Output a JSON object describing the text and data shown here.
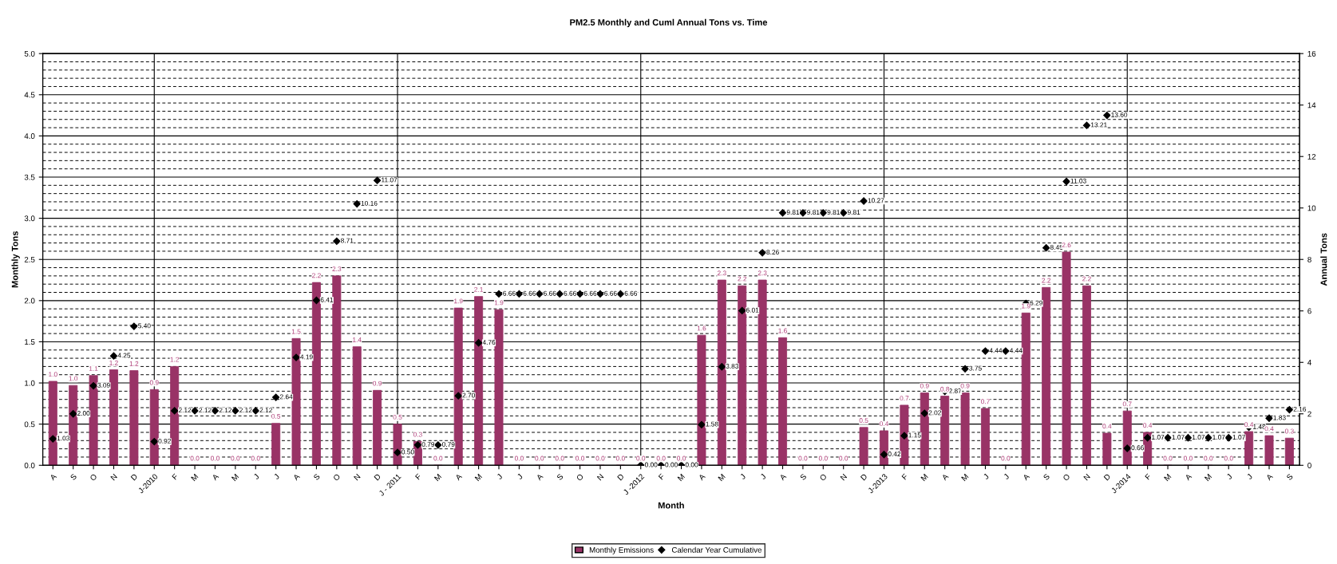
{
  "chart_data": {
    "type": "bar",
    "title": "PM2.5 Monthly and Cuml Annual Tons vs. Time",
    "xlabel": "Month",
    "ylabel": "Monthly Tons",
    "y2label": "Annual Tons",
    "categories": [
      "A",
      "S",
      "O",
      "N",
      "D",
      "J-2010",
      "F",
      "M",
      "A",
      "M",
      "J",
      "J",
      "A",
      "S",
      "O",
      "N",
      "D",
      "J - 2011",
      "F",
      "M",
      "A",
      "M",
      "J",
      "J",
      "A",
      "S",
      "O",
      "N",
      "D",
      "J -2012",
      "F",
      "M",
      "A",
      "M",
      "J",
      "J",
      "A",
      "S",
      "O",
      "N",
      "D",
      "J-2013",
      "F",
      "M",
      "A",
      "M",
      "J",
      "J",
      "A",
      "S",
      "O",
      "N",
      "D",
      "J-2014",
      "F",
      "M",
      "A",
      "M",
      "J",
      "J",
      "A",
      "S"
    ],
    "series": [
      {
        "name": "Monthly Emissions",
        "type": "bar",
        "color": "#993366",
        "values": [
          1.02,
          0.97,
          1.09,
          1.16,
          1.15,
          0.92,
          1.2,
          0,
          0,
          0,
          0,
          0.51,
          1.54,
          2.22,
          2.3,
          1.44,
          0.91,
          0.5,
          0.29,
          0,
          1.91,
          2.05,
          1.89,
          0,
          0,
          0,
          0,
          0,
          0,
          0,
          0,
          0,
          1.58,
          2.25,
          2.18,
          2.25,
          1.55,
          0,
          0,
          0,
          0.46,
          0.42,
          0.73,
          0.88,
          0.84,
          0.88,
          0.69,
          0,
          1.85,
          2.16,
          2.59,
          2.18,
          0.39,
          0.66,
          0.4,
          0,
          0,
          0,
          0,
          0.41,
          0.36,
          0.33
        ],
        "value_labels": [
          "1.0",
          "1.0",
          "1.1",
          "1.2",
          "1.2",
          "0.9",
          "1.2",
          "0.0",
          "0.0",
          "0.0",
          "0.0",
          "0.5",
          "1.5",
          "2.2",
          "2.3",
          "1.4",
          "0.9",
          "0.5",
          "0.3",
          "0.0",
          "1.9",
          "2.1",
          "1.9",
          "0.0",
          "0.0",
          "0.0",
          "0.0",
          "0.0",
          "0.0",
          "0.0",
          "0.0",
          "0.0",
          "1.6",
          "2.3",
          "2.2",
          "2.3",
          "1.6",
          "0.0",
          "0.0",
          "0.0",
          "0.5",
          "0.4",
          "0.7",
          "0.9",
          "0.8",
          "0.9",
          "0.7",
          "0.0",
          "1.9",
          "2.2",
          "2.6",
          "2.2",
          "0.4",
          "0.7",
          "0.4",
          "0.0",
          "0.0",
          "0.0",
          "0.0",
          "0.4",
          "0.4",
          "0.3"
        ]
      },
      {
        "name": "Calendar Year Cumulative",
        "type": "scatter",
        "axis": "y2",
        "color": "#000000",
        "marker": "diamond",
        "values": [
          1.03,
          2.0,
          3.09,
          4.25,
          5.4,
          0.92,
          2.12,
          2.12,
          2.12,
          2.12,
          2.12,
          2.64,
          4.19,
          6.41,
          8.71,
          10.16,
          11.07,
          0.5,
          0.79,
          0.79,
          2.7,
          4.76,
          6.66,
          6.66,
          6.66,
          6.66,
          6.66,
          6.66,
          6.66,
          0.0,
          0.0,
          0.0,
          1.58,
          3.83,
          6.01,
          8.26,
          9.81,
          9.81,
          9.81,
          9.81,
          10.27,
          0.42,
          1.15,
          2.02,
          2.87,
          3.75,
          4.44,
          4.44,
          6.29,
          8.45,
          11.03,
          13.21,
          13.6,
          0.66,
          1.07,
          1.07,
          1.07,
          1.07,
          1.07,
          1.48,
          1.83,
          2.16
        ],
        "value_labels": [
          "1.03",
          "2.00",
          "3.09",
          "4.25",
          "5.40",
          "0.92",
          "2.12",
          "2.12",
          "2.12",
          "2.12",
          "2.12",
          "2.64",
          "4.19",
          "6.41",
          "8.71",
          "10.16",
          "11.07",
          "0.50",
          "0.79",
          "0.79",
          "2.70",
          "4.76",
          "6.66",
          "6.66",
          "6.66",
          "6.66",
          "6.66",
          "6.66",
          "6.66",
          "0.00",
          "0.00",
          "0.00",
          "1.58",
          "3.83",
          "6.01",
          "8.26",
          "9.81",
          "9.81",
          "9.81",
          "9.81",
          "10.27",
          "0.42",
          "1.15",
          "2.02",
          "2.87",
          "3.75",
          "4.44",
          "4.44",
          "6.29",
          "8.45",
          "11.03",
          "13.21",
          "13.60",
          "0.66",
          "1.07",
          "1.07",
          "1.07",
          "1.07",
          "1.07",
          "1.48",
          "1.83",
          "2.16"
        ]
      }
    ],
    "ylim": [
      0,
      5
    ],
    "yticks": [
      {
        "value": 0,
        "label": "0.0"
      },
      {
        "value": 0.1,
        "label": null
      },
      {
        "value": 0.2,
        "label": null
      },
      {
        "value": 0.3,
        "label": null
      },
      {
        "value": 0.4,
        "label": null
      },
      {
        "value": 0.5,
        "label": "0.5"
      },
      {
        "value": 0.6,
        "label": null
      },
      {
        "value": 0.7,
        "label": null
      },
      {
        "value": 0.8,
        "label": null
      },
      {
        "value": 0.9,
        "label": null
      },
      {
        "value": 1.0,
        "label": "1.0"
      },
      {
        "value": 1.1,
        "label": null
      },
      {
        "value": 1.2,
        "label": null
      },
      {
        "value": 1.3,
        "label": null
      },
      {
        "value": 1.4,
        "label": null
      },
      {
        "value": 1.5,
        "label": "1.5"
      },
      {
        "value": 1.6,
        "label": null
      },
      {
        "value": 1.7,
        "label": null
      },
      {
        "value": 1.8,
        "label": null
      },
      {
        "value": 1.9,
        "label": null
      },
      {
        "value": 2.0,
        "label": "2.0"
      },
      {
        "value": 2.1,
        "label": null
      },
      {
        "value": 2.2,
        "label": null
      },
      {
        "value": 2.3,
        "label": null
      },
      {
        "value": 2.4,
        "label": null
      },
      {
        "value": 2.5,
        "label": "2.5"
      },
      {
        "value": 2.6,
        "label": null
      },
      {
        "value": 2.7,
        "label": null
      },
      {
        "value": 2.8,
        "label": null
      },
      {
        "value": 2.9,
        "label": null
      },
      {
        "value": 3.0,
        "label": "3.0"
      },
      {
        "value": 3.1,
        "label": null
      },
      {
        "value": 3.2,
        "label": null
      },
      {
        "value": 3.3,
        "label": null
      },
      {
        "value": 3.4,
        "label": null
      },
      {
        "value": 3.5,
        "label": "3.5"
      },
      {
        "value": 3.6,
        "label": null
      },
      {
        "value": 3.7,
        "label": null
      },
      {
        "value": 3.8,
        "label": null
      },
      {
        "value": 3.9,
        "label": null
      },
      {
        "value": 4.0,
        "label": "4.0"
      },
      {
        "value": 4.1,
        "label": null
      },
      {
        "value": 4.2,
        "label": null
      },
      {
        "value": 4.3,
        "label": null
      },
      {
        "value": 4.4,
        "label": null
      },
      {
        "value": 4.5,
        "label": "4.5"
      },
      {
        "value": 4.6,
        "label": null
      },
      {
        "value": 4.7,
        "label": null
      },
      {
        "value": 4.8,
        "label": null
      },
      {
        "value": 4.9,
        "label": null
      },
      {
        "value": 5.0,
        "label": "5.0"
      }
    ],
    "y2lim": [
      0,
      16
    ],
    "y2ticks": [
      0,
      2,
      4,
      6,
      8,
      10,
      12,
      14,
      16
    ],
    "ref_lines": [
      {
        "axis": "x",
        "value": "J-2010",
        "color": "#000000"
      },
      {
        "axis": "x",
        "value": "J - 2011",
        "color": "#000000"
      },
      {
        "axis": "x",
        "value": "J -2012",
        "color": "#000000"
      },
      {
        "axis": "x",
        "value": "J-2013",
        "color": "#000000"
      },
      {
        "axis": "x",
        "value": "J-2014",
        "color": "#000000"
      }
    ],
    "grid": "y",
    "legend": "bottom"
  }
}
